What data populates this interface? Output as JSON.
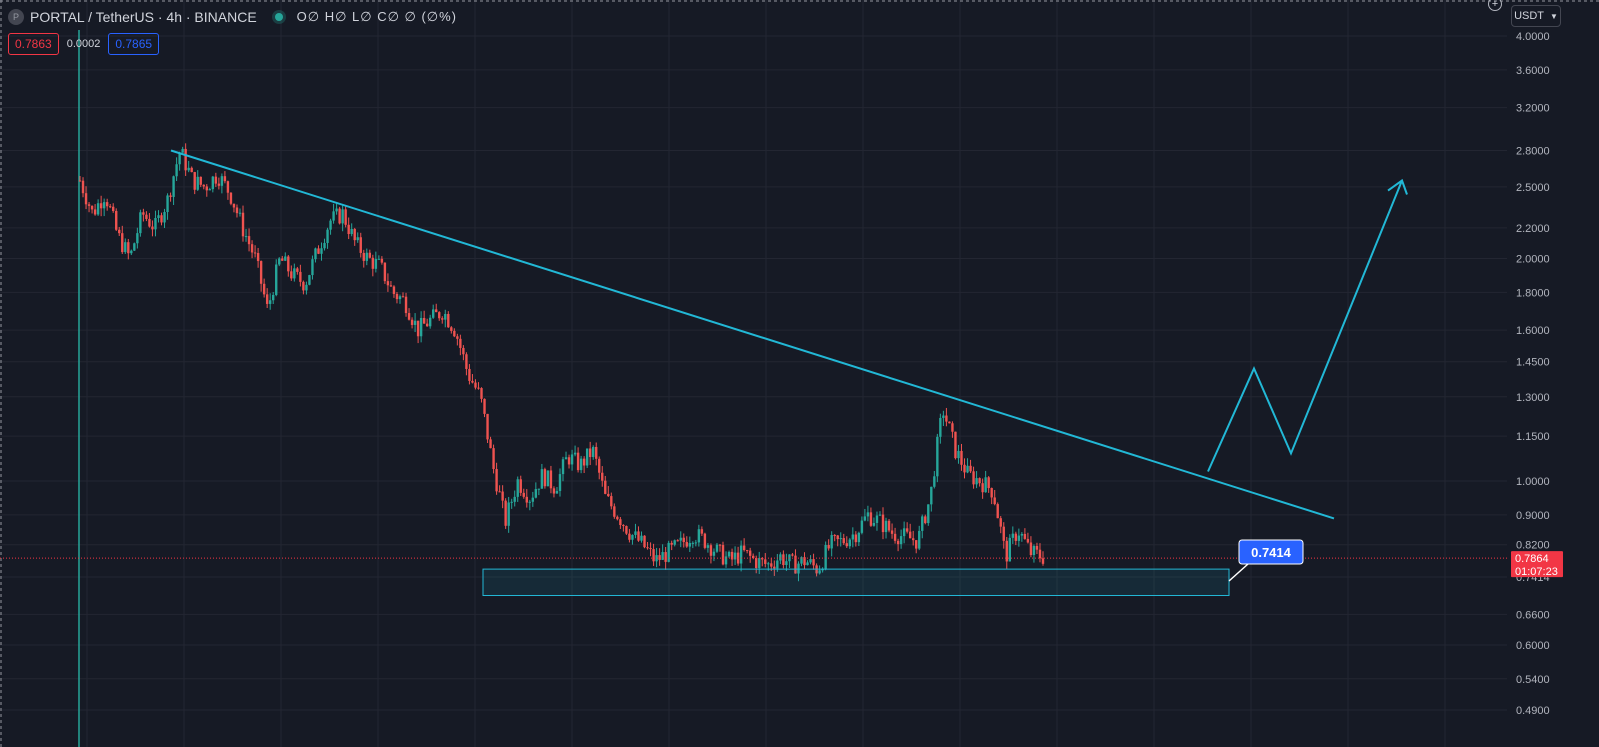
{
  "header": {
    "symbol_icon": "P",
    "title": "PORTAL / TetherUS · 4h · BINANCE",
    "ohlc": "O∅ H∅ L∅ C∅ ∅ (∅%)",
    "sell_price": "0.7863",
    "spread": "0.0002",
    "buy_price": "0.7865"
  },
  "currency_button": {
    "label": "USDT",
    "icon": "chevron-down-icon"
  },
  "add_button": {
    "icon": "plus-icon"
  },
  "price_axis": {
    "scale": "log",
    "ticks": [
      "4.0000",
      "3.6000",
      "3.2000",
      "2.8000",
      "2.5000",
      "2.2000",
      "2.0000",
      "1.8000",
      "1.6000",
      "1.4500",
      "1.3000",
      "1.1500",
      "1.0000",
      "0.9000",
      "0.8200",
      "0.7414",
      "0.6600",
      "0.6000",
      "0.5400",
      "0.4900"
    ]
  },
  "current_price": {
    "price": "0.7864",
    "countdown": "01:07:23",
    "color": "#f23645"
  },
  "colors": {
    "background": "#161a25",
    "up": "#26a69a",
    "down": "#ef5350",
    "drawing": "#22b8d6",
    "label": "#2962ff"
  },
  "chart_data": {
    "type": "candlestick",
    "symbol": "PORTAL/USDT",
    "interval": "4h",
    "exchange": "BINANCE",
    "y_scale": "log",
    "ylim": [
      0.47,
      4.1
    ],
    "close_path": [
      2.55,
      2.3,
      2.45,
      2.15,
      2.0,
      2.3,
      2.2,
      2.4,
      2.8,
      2.55,
      2.5,
      2.6,
      2.45,
      2.2,
      2.0,
      1.7,
      2.0,
      1.9,
      1.85,
      2.05,
      2.25,
      2.3,
      2.1,
      2.0,
      1.95,
      1.8,
      1.75,
      1.6,
      1.65,
      1.7,
      1.6,
      1.4,
      1.3,
      1.05,
      0.88,
      1.0,
      0.95,
      1.02,
      0.98,
      1.08,
      1.05,
      1.1,
      0.95,
      0.9,
      0.85,
      0.82,
      0.78,
      0.8,
      0.82,
      0.85,
      0.83,
      0.8,
      0.78,
      0.8,
      0.78,
      0.77,
      0.79,
      0.77,
      0.78,
      0.76,
      0.82,
      0.83,
      0.85,
      0.9,
      0.88,
      0.85,
      0.84,
      0.83,
      0.95,
      1.25,
      1.1,
      1.02,
      1.0,
      0.97,
      0.79,
      0.86,
      0.8,
      0.79
    ],
    "annotations": {
      "descending_trendline": {
        "from_price": 2.8,
        "to_price": 0.89
      },
      "support_zone": {
        "top": 0.76,
        "bottom": 0.7,
        "label": "0.7414"
      },
      "projected_path": [
        1.03,
        1.42,
        1.09,
        2.55
      ]
    }
  }
}
